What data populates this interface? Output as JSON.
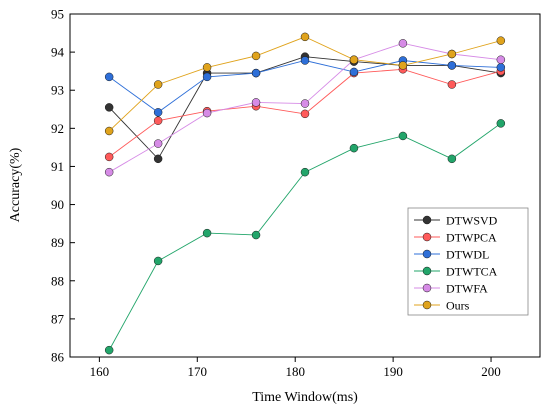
{
  "chart_data": {
    "type": "line",
    "xlabel": "Time Window(ms)",
    "ylabel": "Accuracy(%)",
    "xlim": [
      157,
      205
    ],
    "ylim": [
      86,
      95
    ],
    "xticks": [
      160,
      170,
      180,
      190,
      200
    ],
    "yticks": [
      86,
      87,
      88,
      89,
      90,
      91,
      92,
      93,
      94,
      95
    ],
    "grid": false,
    "legend_position": "center-right",
    "x": [
      161,
      166,
      171,
      176,
      181,
      186,
      191,
      196,
      201
    ],
    "series": [
      {
        "name": "DTWSVD",
        "color": "#333333",
        "values": [
          92.55,
          91.2,
          93.45,
          93.45,
          93.88,
          93.75,
          93.65,
          93.65,
          93.45
        ]
      },
      {
        "name": "DTWPCA",
        "color": "#ff5a5a",
        "values": [
          91.25,
          92.2,
          92.45,
          92.58,
          92.38,
          93.45,
          93.55,
          93.15,
          93.5
        ]
      },
      {
        "name": "DTWDL",
        "color": "#2e6fd8",
        "values": [
          93.35,
          92.42,
          93.35,
          93.45,
          93.78,
          93.48,
          93.78,
          93.65,
          93.6
        ]
      },
      {
        "name": "DTWTCA",
        "color": "#22a56a",
        "values": [
          86.18,
          88.52,
          89.25,
          89.2,
          90.85,
          91.48,
          91.8,
          91.2,
          92.13
        ]
      },
      {
        "name": "DTWFA",
        "color": "#d68be6",
        "values": [
          90.85,
          91.6,
          92.4,
          92.68,
          92.65,
          93.8,
          94.23,
          93.95,
          93.8
        ]
      },
      {
        "name": "Ours",
        "color": "#e0a31c",
        "values": [
          91.93,
          93.15,
          93.6,
          93.9,
          94.4,
          93.8,
          93.65,
          93.95,
          94.3
        ]
      }
    ]
  }
}
